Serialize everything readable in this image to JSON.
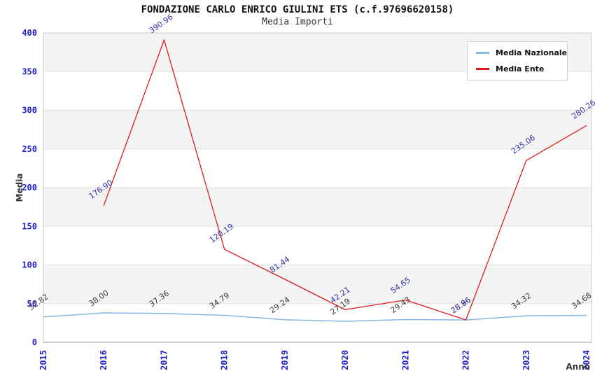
{
  "chart_data": {
    "type": "line",
    "title": "FONDAZIONE CARLO ENRICO GIULINI ETS (c.f.97696620158)",
    "subtitle": "Media Importi",
    "xlabel": "Anno",
    "ylabel": "Media",
    "x": [
      "2015",
      "2016",
      "2017",
      "2018",
      "2019",
      "2020",
      "2021",
      "2022",
      "2023",
      "2024"
    ],
    "ylim": [
      0,
      400
    ],
    "yticks": [
      0,
      50,
      100,
      150,
      200,
      250,
      300,
      350,
      400
    ],
    "grid": true,
    "band_colors": [
      "#ffffff",
      "#f4f4f4"
    ],
    "gridline_color": "#e0e0e0",
    "axis_line_color": "#999999",
    "plot_border_color": "#c9c9c9",
    "tick_label_color": "#2121cc",
    "legend_position": "top-right",
    "series": [
      {
        "name": "Media Nazionale",
        "color": "#86b7e3",
        "label_color": "#3d3d3d",
        "values": [
          32.82,
          38.0,
          37.36,
          34.79,
          29.24,
          27.19,
          29.43,
          28.86,
          34.32,
          34.68
        ]
      },
      {
        "name": "Media Ente",
        "color": "#e31a1c",
        "label_color": "#3333aa",
        "values": [
          null,
          176.9,
          390.96,
          120.19,
          81.44,
          42.21,
          54.65,
          28.96,
          235.06,
          280.26
        ]
      }
    ]
  }
}
